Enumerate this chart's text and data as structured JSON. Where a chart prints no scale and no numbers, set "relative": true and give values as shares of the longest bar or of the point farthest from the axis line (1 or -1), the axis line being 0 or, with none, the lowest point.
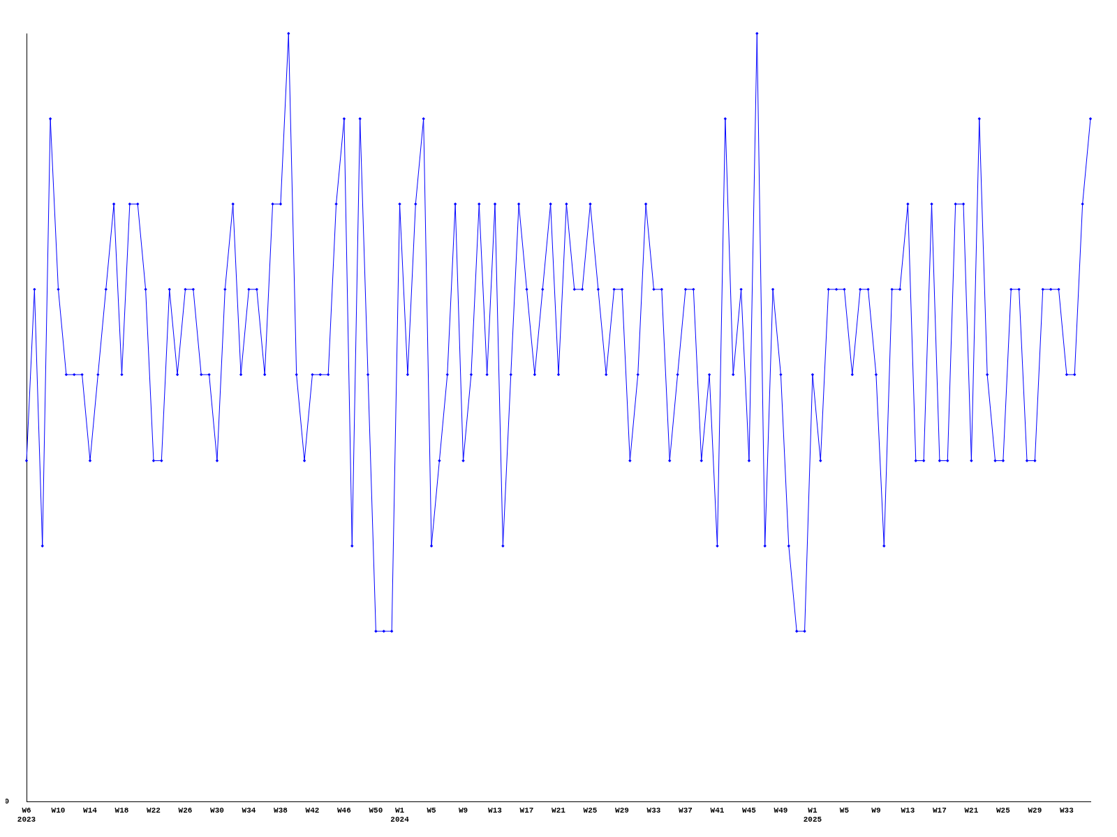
{
  "chart_data": {
    "type": "line",
    "relative": true,
    "marker": "diamond",
    "grid": false,
    "legend": false,
    "annotations": [
      "0"
    ],
    "categories": [
      "W6 2023",
      null,
      null,
      null,
      "W10",
      null,
      null,
      null,
      "W14",
      null,
      null,
      null,
      "W18",
      null,
      null,
      null,
      "W22",
      null,
      null,
      null,
      "W26",
      null,
      null,
      null,
      "W30",
      null,
      null,
      null,
      "W34",
      null,
      null,
      null,
      "W38",
      null,
      null,
      null,
      "W42",
      null,
      null,
      null,
      "W46",
      null,
      null,
      null,
      "W50",
      null,
      null,
      "W1 2024",
      null,
      null,
      null,
      "W5",
      null,
      null,
      null,
      "W9",
      null,
      null,
      null,
      "W13",
      null,
      null,
      null,
      "W17",
      null,
      null,
      null,
      "W21",
      null,
      null,
      null,
      "W25",
      null,
      null,
      null,
      "W29",
      null,
      null,
      null,
      "W33",
      null,
      null,
      null,
      "W37",
      null,
      null,
      null,
      "W41",
      null,
      null,
      null,
      "W45",
      null,
      null,
      null,
      "W49",
      null,
      null,
      null,
      "W1 2025",
      null,
      null,
      null,
      "W5",
      null,
      null,
      null,
      "W9",
      null,
      null,
      null,
      "W13",
      null,
      null,
      null,
      "W17",
      null,
      null,
      null,
      "W21",
      null,
      null,
      null,
      "W25",
      null,
      null,
      null,
      "W29",
      null,
      null,
      null,
      "W33",
      null,
      null,
      null
    ],
    "series": [
      {
        "color": "#0000ff",
        "values": [
          0.444,
          0.667,
          0.333,
          0.889,
          0.667,
          0.556,
          0.556,
          0.556,
          0.444,
          0.556,
          0.667,
          0.778,
          0.556,
          0.778,
          0.778,
          0.667,
          0.444,
          0.444,
          0.667,
          0.556,
          0.667,
          0.667,
          0.556,
          0.556,
          0.444,
          0.667,
          0.778,
          0.556,
          0.667,
          0.667,
          0.556,
          0.778,
          0.778,
          1,
          0.556,
          0.444,
          0.556,
          0.556,
          0.556,
          0.778,
          0.889,
          0.333,
          0.889,
          0.556,
          0.222,
          0.222,
          0.222,
          0.778,
          0.556,
          0.778,
          0.889,
          0.333,
          0.444,
          0.556,
          0.778,
          0.444,
          0.556,
          0.778,
          0.556,
          0.778,
          0.333,
          0.556,
          0.778,
          0.667,
          0.556,
          0.667,
          0.778,
          0.556,
          0.778,
          0.667,
          0.667,
          0.778,
          0.667,
          0.556,
          0.667,
          0.667,
          0.444,
          0.556,
          0.778,
          0.667,
          0.667,
          0.444,
          0.556,
          0.667,
          0.667,
          0.444,
          0.556,
          0.333,
          0.889,
          0.556,
          0.667,
          0.444,
          1,
          0.333,
          0.667,
          0.556,
          0.333,
          0.222,
          0.222,
          0.556,
          0.444,
          0.667,
          0.667,
          0.667,
          0.556,
          0.667,
          0.667,
          0.556,
          0.333,
          0.667,
          0.667,
          0.778,
          0.444,
          0.444,
          0.778,
          0.444,
          0.444,
          0.778,
          0.778,
          0.444,
          0.889,
          0.556,
          0.444,
          0.444,
          0.667,
          0.667,
          0.444,
          0.444,
          0.667,
          0.667,
          0.667,
          0.556,
          0.556,
          0.778,
          0.889
        ]
      }
    ]
  }
}
